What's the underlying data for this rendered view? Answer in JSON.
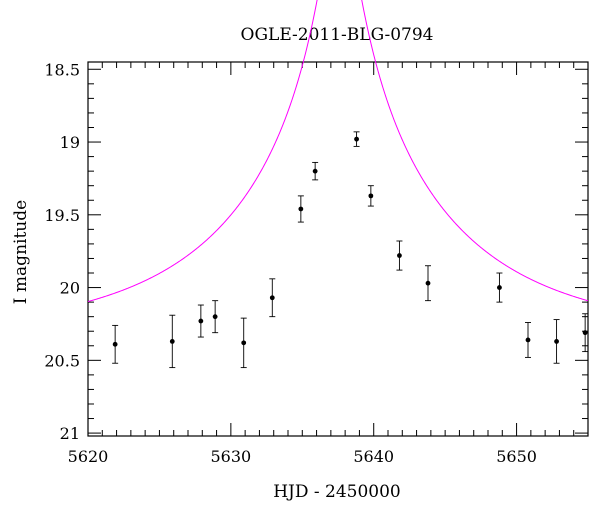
{
  "chart_data": {
    "type": "scatter",
    "title": "OGLE-2011-BLG-0794",
    "xlabel": "HJD - 2450000",
    "ylabel": "I magnitude",
    "xlim": [
      5620,
      5655
    ],
    "ylim": [
      18.45,
      21.02
    ],
    "y_inverted": true,
    "grid": false,
    "x_major_ticks": [
      5620,
      5630,
      5640,
      5650
    ],
    "x_tick_labels": [
      "5620",
      "5630",
      "5640",
      "5650"
    ],
    "y_major_ticks": [
      18.5,
      19,
      19.5,
      20,
      20.5,
      21
    ],
    "y_tick_labels": [
      "18.5",
      "19",
      "19.5",
      "20",
      "20.5",
      "21"
    ],
    "colors": {
      "model": "#ff00ff",
      "points": "#000000",
      "axes": "#000000"
    },
    "series": [
      {
        "type": "scatter",
        "x": [
          5621.9,
          5625.9,
          5627.9,
          5628.9,
          5630.9,
          5632.9,
          5634.9,
          5635.9,
          5638.8,
          5639.8,
          5641.8,
          5643.8,
          5648.8,
          5650.8,
          5652.8,
          5654.8
        ],
        "y": [
          20.39,
          20.37,
          20.23,
          20.2,
          20.38,
          20.07,
          19.46,
          19.2,
          18.98,
          19.37,
          19.78,
          19.97,
          20.0,
          20.36,
          20.37,
          20.31
        ],
        "err": [
          0.13,
          0.18,
          0.11,
          0.11,
          0.17,
          0.13,
          0.09,
          0.06,
          0.05,
          0.07,
          0.1,
          0.12,
          0.1,
          0.12,
          0.15,
          0.13
        ]
      },
      {
        "type": "line",
        "model": "pspl",
        "baseline_mag": 20.33,
        "t0": 5637.6,
        "tE": 15,
        "u0": 0.06
      }
    ]
  }
}
